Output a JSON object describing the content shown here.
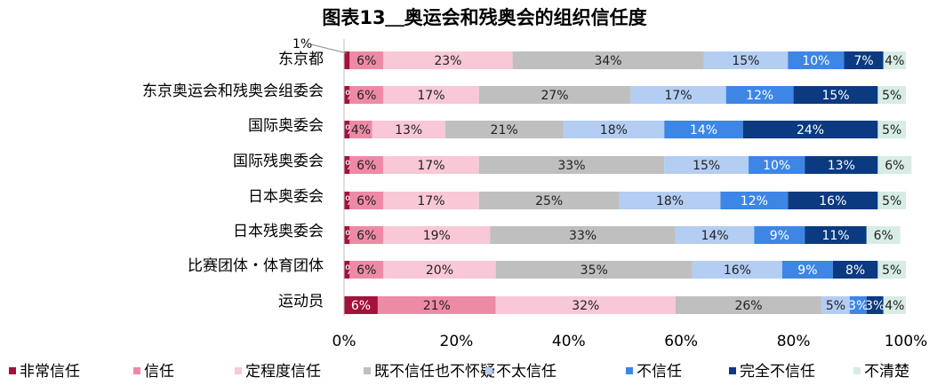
{
  "chart_data": {
    "type": "bar",
    "orientation": "horizontal-stacked-100",
    "title": "图表13＿奥运会和残奥会的组织信任度",
    "categories": [
      "东京都",
      "东京奥运会和残奥会组委会",
      "国际奥委会",
      "国际残奥委会",
      "日本奥委会",
      "日本残奥委会",
      "比赛团体・体育团体",
      "运动员"
    ],
    "series": [
      {
        "name": "非常信任",
        "color": "#a3123b",
        "values": [
          1,
          1,
          1,
          1,
          1,
          1,
          1,
          6
        ]
      },
      {
        "name": "信任",
        "color": "#ee8aa6",
        "values": [
          6,
          6,
          4,
          6,
          6,
          6,
          6,
          21
        ]
      },
      {
        "name": "定程度信任",
        "color": "#f8c8d6",
        "values": [
          23,
          17,
          13,
          17,
          17,
          19,
          20,
          32
        ]
      },
      {
        "name": "既不信任也不怀疑",
        "color": "#bfbfbf",
        "values": [
          34,
          27,
          21,
          33,
          25,
          33,
          35,
          26
        ]
      },
      {
        "name": "不太信任",
        "color": "#b4cdf3",
        "values": [
          15,
          17,
          18,
          15,
          18,
          14,
          16,
          5
        ]
      },
      {
        "name": "不信任",
        "color": "#3d86e6",
        "values": [
          10,
          12,
          14,
          10,
          12,
          9,
          9,
          3
        ]
      },
      {
        "name": "完全不信任",
        "color": "#0b3a80",
        "values": [
          7,
          15,
          24,
          13,
          16,
          11,
          8,
          3
        ]
      },
      {
        "name": "不清楚",
        "color": "#d7ece4",
        "values": [
          4,
          5,
          5,
          6,
          5,
          6,
          5,
          4
        ]
      }
    ],
    "data_labels": [
      [
        "6%",
        "23%",
        "34%",
        "15%",
        "10%",
        "7%",
        "4%"
      ],
      [
        "1%",
        "6%",
        "17%",
        "27%",
        "17%",
        "12%",
        "15%",
        "5%"
      ],
      [
        "1%",
        "4%",
        "13%",
        "21%",
        "18%",
        "14%",
        "24%",
        "5%"
      ],
      [
        "1%",
        "6%",
        "17%",
        "33%",
        "15%",
        "10%",
        "13%",
        "6%"
      ],
      [
        "1%",
        "6%",
        "17%",
        "25%",
        "18%",
        "12%",
        "16%",
        "5%"
      ],
      [
        "1%",
        "6%",
        "19%",
        "33%",
        "14%",
        "9%",
        "11%",
        "6%"
      ],
      [
        "1%",
        "6%",
        "20%",
        "35%",
        "16%",
        "9%",
        "8%",
        "5%"
      ],
      [
        "6%",
        "21%",
        "32%",
        "26%",
        "5%",
        "3%",
        "3%",
        "4%"
      ]
    ],
    "callout_label": "1%",
    "xlim": [
      0,
      100
    ],
    "x_tick_labels": [
      "0%",
      "20%",
      "40%",
      "60%",
      "80%",
      "100%"
    ],
    "grid": false,
    "legend_position": "bottom"
  }
}
